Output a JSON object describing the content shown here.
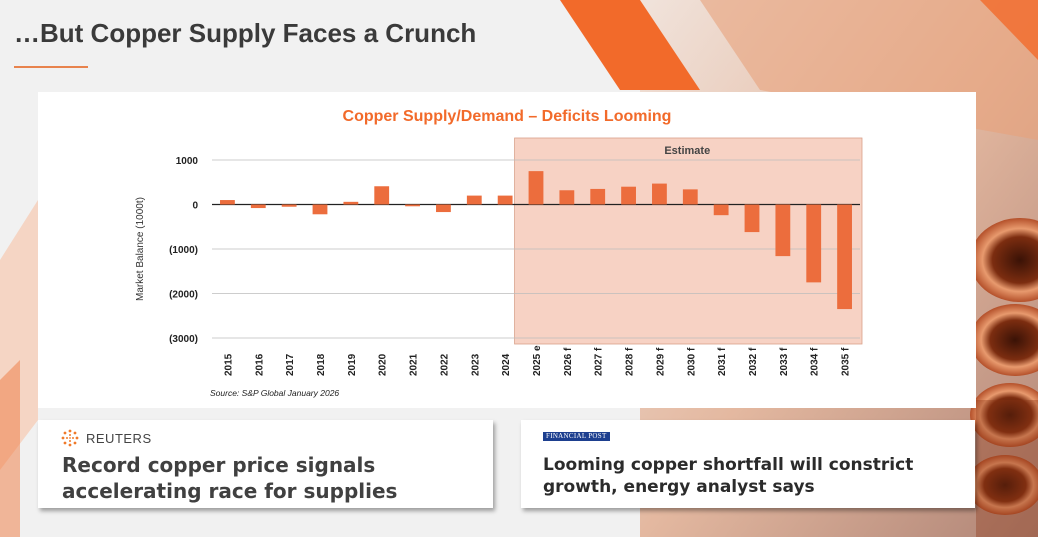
{
  "slide": {
    "title": "…But Copper Supply Faces a Crunch"
  },
  "chart_data": {
    "type": "bar",
    "title": "Copper Supply/Demand – Deficits Looming",
    "ylabel": "Market Balance (1000t)",
    "xlabel": "",
    "ylim": [
      -3000,
      1000
    ],
    "yticks": [
      1000,
      0,
      -1000,
      -2000,
      -3000
    ],
    "ytick_labels": [
      "1000",
      "0",
      "(1000)",
      "(2000)",
      "(3000)"
    ],
    "categories": [
      "2015",
      "2016",
      "2017",
      "2018",
      "2019",
      "2020",
      "2021",
      "2022",
      "2023",
      "2024",
      "2025 e",
      "2026 f",
      "2027 f",
      "2028 f",
      "2029 f",
      "2030 f",
      "2031 f",
      "2032 f",
      "2033 f",
      "2034 f",
      "2035 f"
    ],
    "values": [
      100,
      -80,
      -50,
      -220,
      60,
      410,
      -40,
      -170,
      200,
      200,
      750,
      320,
      350,
      400,
      470,
      340,
      -240,
      -620,
      -1160,
      -1750,
      -2350
    ],
    "estimate_label": "Estimate",
    "estimate_start_index": 10,
    "source": "Source: S&P Global January 2026",
    "bar_color": "#ec6d3d",
    "shade_color": "#f7d2c4"
  },
  "news": {
    "reuters": {
      "brand": "REUTERS",
      "headline": "Record copper price signals accelerating race for supplies"
    },
    "financial_post": {
      "brand": "FINANCIAL POST",
      "headline": "Looming copper shortfall will constrict growth, energy analyst says"
    }
  },
  "colors": {
    "accent": "#f26a2a",
    "title": "#3a3a3a"
  }
}
